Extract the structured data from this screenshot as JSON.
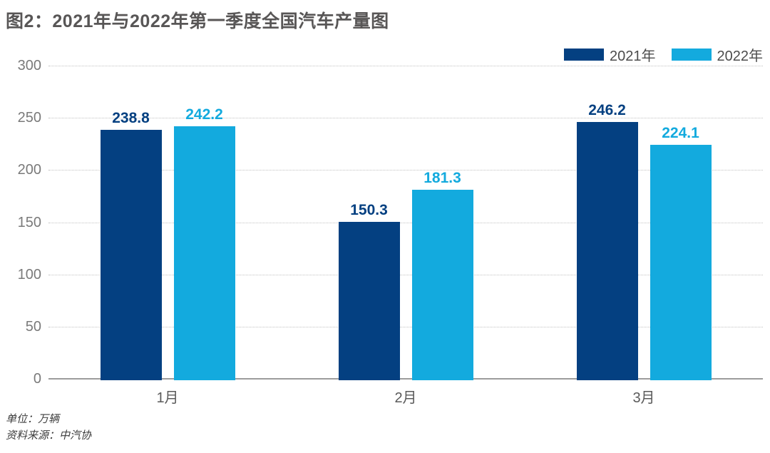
{
  "title": "图2：2021年与2022年第一季度全国汽车产量图",
  "legend": {
    "items": [
      {
        "label": "2021年",
        "color": "#044081"
      },
      {
        "label": "2022年",
        "color": "#13aade"
      }
    ]
  },
  "footer": {
    "unit": "单位：万辆",
    "source": "资料来源：中汽协"
  },
  "chart_data": {
    "type": "bar",
    "title": "图2：2021年与2022年第一季度全国汽车产量图",
    "categories": [
      "1月",
      "2月",
      "3月"
    ],
    "series": [
      {
        "name": "2021年",
        "color": "#044081",
        "values": [
          238.8,
          150.3,
          246.2
        ]
      },
      {
        "name": "2022年",
        "color": "#13aade",
        "values": [
          242.2,
          181.3,
          224.1
        ]
      }
    ],
    "xlabel": "",
    "ylabel": "",
    "unit": "万辆",
    "ylim": [
      0,
      300
    ],
    "yticks": [
      0,
      50,
      100,
      150,
      200,
      250,
      300
    ],
    "grid": "horizontal-dotted",
    "legend_position": "top-right",
    "value_labels": "above-bars",
    "source": "中汽协"
  }
}
